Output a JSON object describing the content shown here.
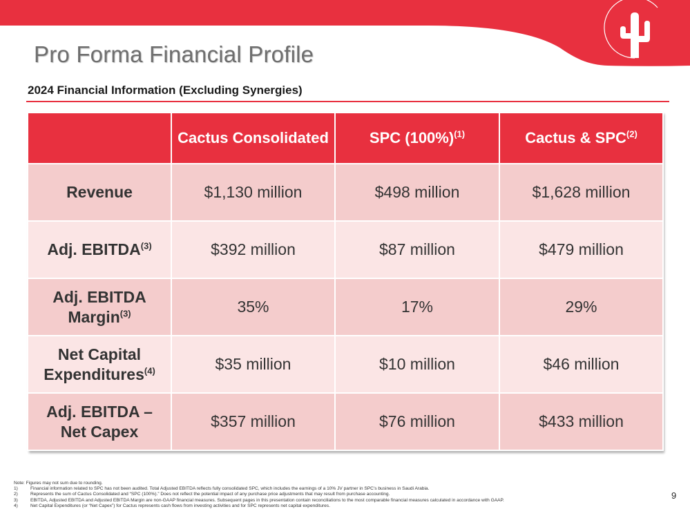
{
  "header": {
    "title": "Pro Forma Financial Profile",
    "subtitle": "2024 Financial Information (Excluding Synergies)",
    "brand_color": "#e8303f",
    "logo_icon": "cactus-logo-icon"
  },
  "table": {
    "columns": [
      {
        "label": "",
        "superscript": ""
      },
      {
        "label": "Cactus Consolidated",
        "superscript": ""
      },
      {
        "label": "SPC (100%)",
        "superscript": "(1)"
      },
      {
        "label": "Cactus & SPC",
        "superscript": "(2)"
      }
    ],
    "rows": [
      {
        "label": "Revenue",
        "superscript": "",
        "values": [
          "$1,130 million",
          "$498 million",
          "$1,628 million"
        ]
      },
      {
        "label": "Adj. EBITDA",
        "superscript": "(3)",
        "values": [
          "$392 million",
          "$87 million",
          "$479 million"
        ]
      },
      {
        "label": "Adj. EBITDA Margin",
        "superscript": "(3)",
        "values": [
          "35%",
          "17%",
          "29%"
        ]
      },
      {
        "label": "Net Capital Expenditures",
        "superscript": "(4)",
        "values": [
          "$35 million",
          "$10 million",
          "$46 million"
        ]
      },
      {
        "label": "Adj. EBITDA – Net Capex",
        "superscript": "",
        "values": [
          "$357 million",
          "$76 million",
          "$433 million"
        ]
      }
    ]
  },
  "footnotes": {
    "note": "Note:  Figures may not sum due to rounding.",
    "items": [
      {
        "num": "1)",
        "text": "Financial information related to SPC has not been audited. Total Adjusted EBITDA reflects fully consolidated SPC, which includes the earnings of a 10% JV partner in SPC’s business in Saudi Arabia."
      },
      {
        "num": "2)",
        "text": "Represents the sum of Cactus Consolidated and “SPC (100%).” Does not reflect the potential impact of any purchase price adjustments that may result from purchase accounting."
      },
      {
        "num": "3)",
        "text": "EBITDA, Adjusted EBITDA and Adjusted EBITDA Margin are non-GAAP financial measures. Subsequent pages in this presentation contain reconciliations to the most comparable financial measures calculated in accordance with GAAP."
      },
      {
        "num": "4)",
        "text": "Net Capital Expenditures (or “Net Capex”) for Cactus represents cash flows from investing activities and for SPC represents net capital expenditures."
      }
    ]
  },
  "page_number": "9"
}
